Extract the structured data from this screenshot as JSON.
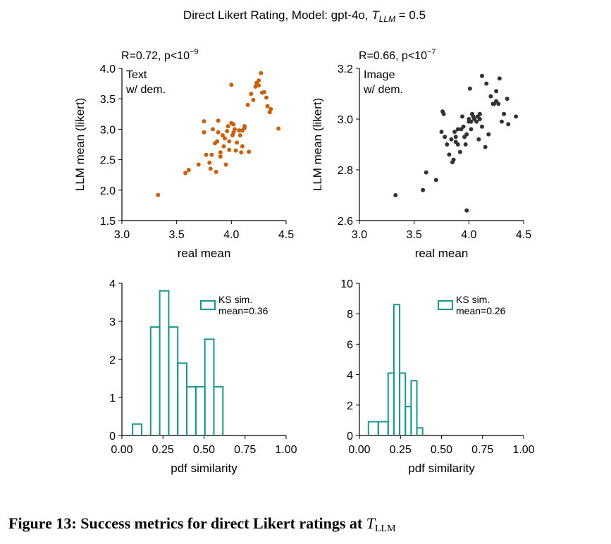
{
  "suptitle": {
    "prefix": "Direct Likert Rating, Model: gpt-4o, ",
    "var": "T",
    "sub": "LLM",
    "suffix": " = 0.5"
  },
  "caption": {
    "text": "Figure 13: Success metrics for direct Likert ratings at ",
    "var": "T",
    "sub": "LLM"
  },
  "colors": {
    "text_series": "#c8600c",
    "image_series": "#333333",
    "hist": "#1a9690",
    "axis": "#000000"
  },
  "chart_data": [
    {
      "type": "scatter",
      "stat_label": "R=0.72, p<10",
      "stat_exp": "−9",
      "annotation": [
        "Text",
        "w/ dem."
      ],
      "xlabel": "real mean",
      "ylabel": "LLM mean (likert)",
      "xlim": [
        3.0,
        4.5
      ],
      "ylim": [
        1.5,
        4.0
      ],
      "xticks": [
        "3.0",
        "3.5",
        "4.0",
        "4.5"
      ],
      "yticks": [
        "1.5",
        "2.0",
        "2.5",
        "3.0",
        "3.5",
        "4.0"
      ],
      "color": "#c8600c",
      "x": [
        3.33,
        3.58,
        3.61,
        3.7,
        3.75,
        3.75,
        3.77,
        3.8,
        3.81,
        3.82,
        3.83,
        3.85,
        3.86,
        3.87,
        3.88,
        3.88,
        3.9,
        3.9,
        3.92,
        3.93,
        3.94,
        3.95,
        3.96,
        3.97,
        3.98,
        3.98,
        4.0,
        4.0,
        4.01,
        4.02,
        4.02,
        4.03,
        4.04,
        4.05,
        4.07,
        4.08,
        4.09,
        4.1,
        4.1,
        4.12,
        4.12,
        4.15,
        4.16,
        4.18,
        4.2,
        4.22,
        4.23,
        4.25,
        4.25,
        4.27,
        4.28,
        4.3,
        4.32,
        4.33,
        4.35,
        4.36,
        4.43
      ],
      "y": [
        1.92,
        2.28,
        2.33,
        2.42,
        2.95,
        3.13,
        2.58,
        2.45,
        2.35,
        2.58,
        3.0,
        2.77,
        2.3,
        2.8,
        2.95,
        3.14,
        2.55,
        2.62,
        2.9,
        2.72,
        2.85,
        2.42,
        2.97,
        3.05,
        2.66,
        2.8,
        3.1,
        3.73,
        2.9,
        3.08,
        2.95,
        3.0,
        2.65,
        2.78,
        2.98,
        2.9,
        2.62,
        2.72,
        2.98,
        3.05,
        3.02,
        3.4,
        2.63,
        3.58,
        3.48,
        3.7,
        3.76,
        3.8,
        3.72,
        3.92,
        3.6,
        3.61,
        3.52,
        3.38,
        3.28,
        3.33,
        3.01
      ]
    },
    {
      "type": "scatter",
      "stat_label": "R=0.66, p<10",
      "stat_exp": "−7",
      "annotation": [
        "Image",
        "w/ dem."
      ],
      "xlabel": "real mean",
      "ylabel": "LLM mean (likert)",
      "xlim": [
        3.0,
        4.5
      ],
      "ylim": [
        2.6,
        3.2
      ],
      "xticks": [
        "3.0",
        "3.5",
        "4.0",
        "4.5"
      ],
      "yticks": [
        "2.6",
        "2.8",
        "3.0",
        "3.2"
      ],
      "color": "#333333",
      "x": [
        3.33,
        3.58,
        3.61,
        3.7,
        3.75,
        3.76,
        3.77,
        3.78,
        3.8,
        3.82,
        3.84,
        3.85,
        3.86,
        3.87,
        3.88,
        3.88,
        3.9,
        3.9,
        3.92,
        3.93,
        3.94,
        3.95,
        3.96,
        3.97,
        3.98,
        3.98,
        4.0,
        4.0,
        4.01,
        4.02,
        4.02,
        4.03,
        4.04,
        4.05,
        4.07,
        4.08,
        4.09,
        4.1,
        4.1,
        4.12,
        4.12,
        4.15,
        4.16,
        4.18,
        4.2,
        4.22,
        4.23,
        4.25,
        4.25,
        4.27,
        4.28,
        4.3,
        4.32,
        4.35,
        4.36,
        4.43
      ],
      "y": [
        2.7,
        2.72,
        2.79,
        2.76,
        2.95,
        3.03,
        3.02,
        2.93,
        2.9,
        2.86,
        2.92,
        2.83,
        2.84,
        2.95,
        2.93,
        2.91,
        2.9,
        2.96,
        2.87,
        2.96,
        3.01,
        2.97,
        2.93,
        2.9,
        2.94,
        2.64,
        3.0,
        2.99,
        3.12,
        2.96,
        2.99,
        3.02,
        3.01,
        3.0,
        2.99,
        3.01,
        2.92,
        3.02,
        3.0,
        3.17,
        2.97,
        2.89,
        3.14,
        2.94,
        3.09,
        3.06,
        3.06,
        3.11,
        3.07,
        3.06,
        3.16,
        2.99,
        3.02,
        3.08,
        2.98,
        3.01
      ]
    },
    {
      "type": "histogram",
      "legend": [
        "KS sim.",
        "mean=0.36"
      ],
      "xlabel": "pdf similarity",
      "xlim": [
        0.0,
        1.0
      ],
      "ylim": [
        0,
        4
      ],
      "xticks": [
        "0.00",
        "0.25",
        "0.50",
        "0.75",
        "1.00"
      ],
      "yticks": [
        "0",
        "1",
        "2",
        "3",
        "4"
      ],
      "color": "#1a9690",
      "bin_edges": [
        0.065,
        0.12,
        0.175,
        0.23,
        0.285,
        0.34,
        0.395,
        0.45,
        0.505,
        0.56,
        0.615
      ],
      "counts": [
        0.3,
        0,
        2.85,
        3.8,
        2.85,
        1.9,
        1.28,
        1.28,
        2.53,
        1.28
      ]
    },
    {
      "type": "histogram",
      "legend": [
        "KS sim.",
        "mean=0.26"
      ],
      "xlabel": "pdf similarity",
      "xlim": [
        0.0,
        1.0
      ],
      "ylim": [
        0,
        10
      ],
      "xticks": [
        "0.00",
        "0.25",
        "0.50",
        "0.75",
        "1.00"
      ],
      "yticks": [
        "0",
        "2",
        "4",
        "6",
        "8",
        "10"
      ],
      "color": "#1a9690",
      "bin_edges": [
        0.055,
        0.115,
        0.175,
        0.21,
        0.245,
        0.28,
        0.315,
        0.35,
        0.385,
        0.45
      ],
      "counts": [
        0.9,
        0.9,
        4.1,
        8.6,
        4.1,
        1.9,
        3.6,
        0.5,
        0
      ]
    }
  ]
}
